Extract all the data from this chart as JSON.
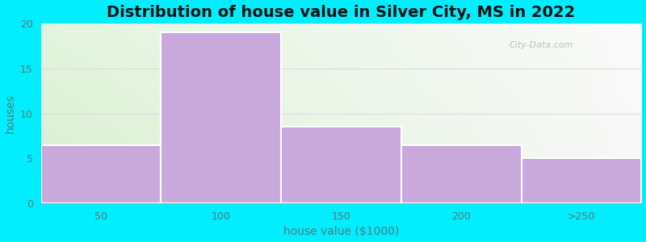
{
  "title": "Distribution of house value in Silver City, MS in 2022",
  "xlabel": "house value ($1000)",
  "ylabel": "houses",
  "categories": [
    "50",
    "100",
    "150",
    "200",
    ">250"
  ],
  "values": [
    6.5,
    19,
    8.5,
    6.5,
    5
  ],
  "bar_color": "#c9a8dc",
  "bar_edge_color": "#ffffff",
  "ylim": [
    0,
    20
  ],
  "yticks": [
    0,
    5,
    10,
    15,
    20
  ],
  "figure_bg": "#00eeff",
  "grid_color": "#dddddd",
  "title_fontsize": 14,
  "axis_label_fontsize": 10,
  "tick_fontsize": 9,
  "title_fontweight": "bold",
  "label_color": "#5a7a7a",
  "title_color": "#111111",
  "bg_color_left": "#d8f0d0",
  "bg_color_right": "#f0f0f0"
}
